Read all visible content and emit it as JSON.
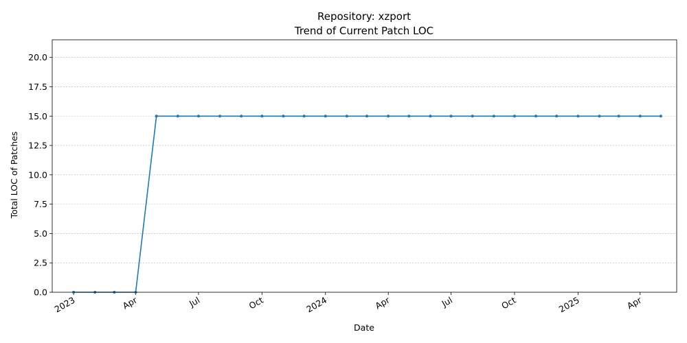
{
  "chart_data": {
    "type": "line",
    "title": "Repository: xzport",
    "subtitle": "Trend of Current Patch LOC",
    "xlabel": "Date",
    "ylabel": "Total LOC of Patches",
    "x_range": [
      "2022-12-01",
      "2025-05-24"
    ],
    "ylim": [
      0,
      21.5
    ],
    "y_ticks": [
      "0.0",
      "2.5",
      "5.0",
      "7.5",
      "10.0",
      "12.5",
      "15.0",
      "17.5",
      "20.0"
    ],
    "x_ticks": [
      {
        "date": "2023-01-01",
        "label": "2023"
      },
      {
        "date": "2023-04-01",
        "label": "Apr"
      },
      {
        "date": "2023-07-01",
        "label": "Jul"
      },
      {
        "date": "2023-10-01",
        "label": "Oct"
      },
      {
        "date": "2024-01-01",
        "label": "2024"
      },
      {
        "date": "2024-04-01",
        "label": "Apr"
      },
      {
        "date": "2024-07-01",
        "label": "Jul"
      },
      {
        "date": "2024-10-01",
        "label": "Oct"
      },
      {
        "date": "2025-01-01",
        "label": "2025"
      },
      {
        "date": "2025-04-01",
        "label": "Apr"
      }
    ],
    "grid": "horizontal dashed",
    "color": "#1f77b4",
    "series": [
      {
        "points": [
          {
            "x": "2023-01-01",
            "y": 0
          },
          {
            "x": "2023-02-01",
            "y": 0
          },
          {
            "x": "2023-03-01",
            "y": 0
          },
          {
            "x": "2023-04-01",
            "y": 0
          },
          {
            "x": "2023-05-01",
            "y": 15
          },
          {
            "x": "2023-06-01",
            "y": 15
          },
          {
            "x": "2023-07-01",
            "y": 15
          },
          {
            "x": "2023-08-01",
            "y": 15
          },
          {
            "x": "2023-09-01",
            "y": 15
          },
          {
            "x": "2023-10-01",
            "y": 15
          },
          {
            "x": "2023-11-01",
            "y": 15
          },
          {
            "x": "2023-12-01",
            "y": 15
          },
          {
            "x": "2024-01-01",
            "y": 15
          },
          {
            "x": "2024-02-01",
            "y": 15
          },
          {
            "x": "2024-03-01",
            "y": 15
          },
          {
            "x": "2024-04-01",
            "y": 15
          },
          {
            "x": "2024-05-01",
            "y": 15
          },
          {
            "x": "2024-06-01",
            "y": 15
          },
          {
            "x": "2024-07-01",
            "y": 15
          },
          {
            "x": "2024-08-01",
            "y": 15
          },
          {
            "x": "2024-09-01",
            "y": 15
          },
          {
            "x": "2024-10-01",
            "y": 15
          },
          {
            "x": "2024-11-01",
            "y": 15
          },
          {
            "x": "2024-12-01",
            "y": 15
          },
          {
            "x": "2025-01-01",
            "y": 15
          },
          {
            "x": "2025-02-01",
            "y": 15
          },
          {
            "x": "2025-03-01",
            "y": 15
          },
          {
            "x": "2025-04-01",
            "y": 15
          },
          {
            "x": "2025-05-01",
            "y": 15
          }
        ]
      }
    ]
  }
}
